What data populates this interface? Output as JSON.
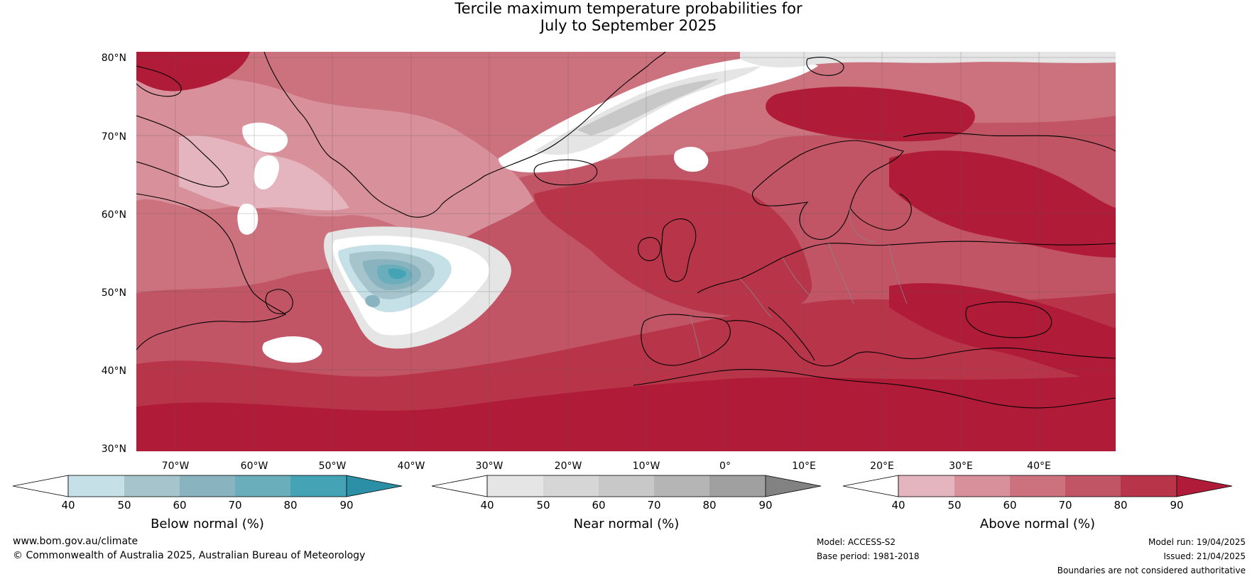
{
  "title": {
    "line1": "Tercile maximum temperature probabilities for",
    "line2": "July to September 2025"
  },
  "map": {
    "lat_labels": [
      "80°N",
      "70°N",
      "60°N",
      "50°N",
      "40°N",
      "30°N"
    ],
    "lon_labels": [
      "70°W",
      "60°W",
      "50°W",
      "40°W",
      "30°W",
      "20°W",
      "10°W",
      "0°",
      "10°E",
      "20°E",
      "30°E",
      "40°E"
    ],
    "lon_min": -75,
    "lon_max": 50,
    "lat_min": 30,
    "lat_max": 81,
    "background_color": "#c0384e",
    "coastline_color": "#000000",
    "border_color": "#888888"
  },
  "legends": [
    {
      "name": "below",
      "title": "Below normal (%)",
      "ticks": [
        "40",
        "50",
        "60",
        "70",
        "80",
        "90"
      ],
      "colors": [
        "#ffffff",
        "#c5e0e7",
        "#a5c4cb",
        "#8ab3c0",
        "#6aaebc",
        "#44a4b5",
        "#2b8fa5"
      ]
    },
    {
      "name": "near",
      "title": "Near normal (%)",
      "ticks": [
        "40",
        "50",
        "60",
        "70",
        "80",
        "90"
      ],
      "colors": [
        "#ffffff",
        "#e5e5e5",
        "#d6d6d6",
        "#c8c8c8",
        "#b5b5b5",
        "#a0a0a0",
        "#828282"
      ]
    },
    {
      "name": "above",
      "title": "Above normal (%)",
      "ticks": [
        "40",
        "50",
        "60",
        "70",
        "80",
        "90"
      ],
      "colors": [
        "#ffffff",
        "#e4b5be",
        "#d8909a",
        "#cc727e",
        "#c15565",
        "#b83549",
        "#b01c38"
      ]
    }
  ],
  "footer": {
    "website": "www.bom.gov.au/climate",
    "copyright": "© Commonwealth of Australia 2025, Australian Bureau of Meteorology",
    "model": "Model: ACCESS-S2",
    "base_period": "Base period: 1981-2018",
    "model_run": "Model run: 19/04/2025",
    "issued": "Issued: 21/04/2025",
    "disclaimer": "Boundaries are not considered authoritative"
  }
}
